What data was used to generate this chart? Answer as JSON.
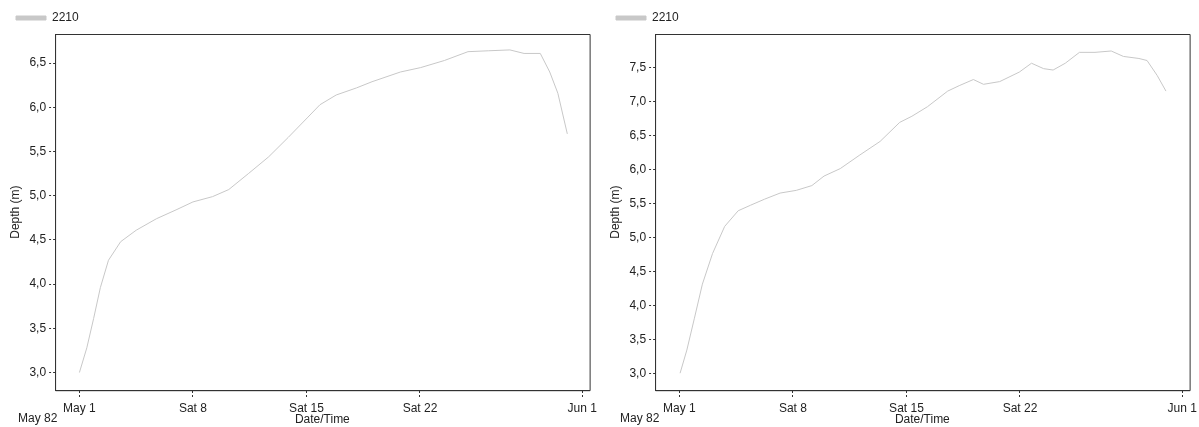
{
  "chart_data": [
    {
      "type": "line",
      "xlabel": "Date/Time",
      "ylabel": "Depth (m)",
      "legend": "top left",
      "grid": false,
      "marker": "none",
      "line_style": "solid",
      "annotations": [
        "May 82"
      ],
      "xlim": [
        "--04-29T12:00",
        "--06-01T11:00"
      ],
      "xticks": [
        {
          "value": "--05-01",
          "label": "May 1"
        },
        {
          "value": "--05-08",
          "label": "Sat 8"
        },
        {
          "value": "--05-15",
          "label": "Sat 15"
        },
        {
          "value": "--05-22",
          "label": "Sat 22"
        },
        {
          "value": "--06-01",
          "label": "Jun 1"
        }
      ],
      "ylim": [
        2.8,
        6.83
      ],
      "yticks": [
        {
          "value": 3.0,
          "label": "3,0"
        },
        {
          "value": 3.5,
          "label": "3,5"
        },
        {
          "value": 4.0,
          "label": "4,0"
        },
        {
          "value": 4.5,
          "label": "4,5"
        },
        {
          "value": 5.0,
          "label": "5,0"
        },
        {
          "value": 5.5,
          "label": "5,5"
        },
        {
          "value": 6.0,
          "label": "6,0"
        },
        {
          "value": 6.5,
          "label": "6,5"
        }
      ],
      "x": [
        "--05-01T00:00",
        "--05-01T11:00",
        "--05-01T21:00",
        "--05-02T07:00",
        "--05-02T19:00",
        "--05-03T13:00",
        "--05-04T12:00",
        "--05-05T18:00",
        "--05-06T23:00",
        "--05-08T00:00",
        "--05-09T05:00",
        "--05-10T05:00",
        "--05-11T10:00",
        "--05-12T16:00",
        "--05-13T21:00",
        "--05-15T01:00",
        "--05-15T20:00",
        "--05-16T20:00",
        "--05-18T02:00",
        "--05-19T01:00",
        "--05-20T19:00",
        "--05-22T01:00",
        "--05-23T12:00",
        "--05-24T23:00",
        "--05-26T05:00",
        "--05-27T13:00",
        "--05-28T10:00",
        "--05-29T10:00",
        "--05-30T00:00",
        "--05-30T12:00",
        "--05-31T02:00"
      ],
      "series": [
        {
          "name": "2210",
          "color": "#c8c8c8",
          "values": [
            3.0,
            3.28,
            3.61,
            3.96,
            4.27,
            4.48,
            4.61,
            4.74,
            4.84,
            4.93,
            4.99,
            5.07,
            5.25,
            5.44,
            5.66,
            5.88,
            6.03,
            6.14,
            6.22,
            6.29,
            6.4,
            6.45,
            6.53,
            6.63,
            6.64,
            6.65,
            6.61,
            6.61,
            6.4,
            6.16,
            5.7
          ]
        }
      ]
    },
    {
      "type": "line",
      "xlabel": "Date/Time",
      "ylabel": "Depth (m)",
      "legend": "top left",
      "grid": false,
      "marker": "none",
      "line_style": "solid",
      "annotations": [
        "May 82"
      ],
      "xlim": [
        "--04-29T12:00",
        "--06-01T11:00"
      ],
      "xticks": [
        {
          "value": "--05-01",
          "label": "May 1"
        },
        {
          "value": "--05-08",
          "label": "Sat 8"
        },
        {
          "value": "--05-15",
          "label": "Sat 15"
        },
        {
          "value": "--05-22",
          "label": "Sat 22"
        },
        {
          "value": "--06-01",
          "label": "Jun 1"
        }
      ],
      "ylim": [
        2.75,
        7.99
      ],
      "yticks": [
        {
          "value": 3.0,
          "label": "3,0"
        },
        {
          "value": 3.5,
          "label": "3,5"
        },
        {
          "value": 4.0,
          "label": "4,0"
        },
        {
          "value": 4.5,
          "label": "4,5"
        },
        {
          "value": 5.0,
          "label": "5,0"
        },
        {
          "value": 5.5,
          "label": "5,5"
        },
        {
          "value": 6.0,
          "label": "6,0"
        },
        {
          "value": 6.5,
          "label": "6,5"
        },
        {
          "value": 7.0,
          "label": "7,0"
        },
        {
          "value": 7.5,
          "label": "7,5"
        }
      ],
      "x": [
        "--05-01T01:00",
        "--05-01T11:00",
        "--05-01T22:00",
        "--05-02T10:00",
        "--05-03T01:00",
        "--05-03T19:00",
        "--05-04T15:00",
        "--05-05T09:00",
        "--05-06T06:00",
        "--05-07T05:00",
        "--05-08T05:00",
        "--05-09T04:00",
        "--05-09T22:00",
        "--05-10T22:00",
        "--05-12T03:00",
        "--05-13T09:00",
        "--05-14T14:00",
        "--05-15T08:00",
        "--05-16T07:00",
        "--05-17T13:00",
        "--05-18T06:00",
        "--05-19T03:00",
        "--05-19T18:00",
        "--05-20T18:00",
        "--05-21T23:00",
        "--05-22T17:00",
        "--05-23T11:00",
        "--05-24T01:00",
        "--05-24T19:00",
        "--05-25T16:00",
        "--05-26T15:00",
        "--05-27T15:00",
        "--05-28T09:00",
        "--05-29T08:00",
        "--05-29T20:00",
        "--05-30T11:00",
        "--05-31T00:00"
      ],
      "series": [
        {
          "name": "2210",
          "color": "#c8c8c8",
          "values": [
            3.0,
            3.34,
            3.8,
            4.31,
            4.76,
            5.16,
            5.39,
            5.47,
            5.56,
            5.65,
            5.69,
            5.76,
            5.9,
            6.01,
            6.21,
            6.41,
            6.69,
            6.78,
            6.92,
            7.15,
            7.23,
            7.32,
            7.25,
            7.29,
            7.43,
            7.56,
            7.48,
            7.46,
            7.56,
            7.72,
            7.72,
            7.74,
            7.66,
            7.63,
            7.6,
            7.38,
            7.15
          ]
        }
      ]
    }
  ]
}
